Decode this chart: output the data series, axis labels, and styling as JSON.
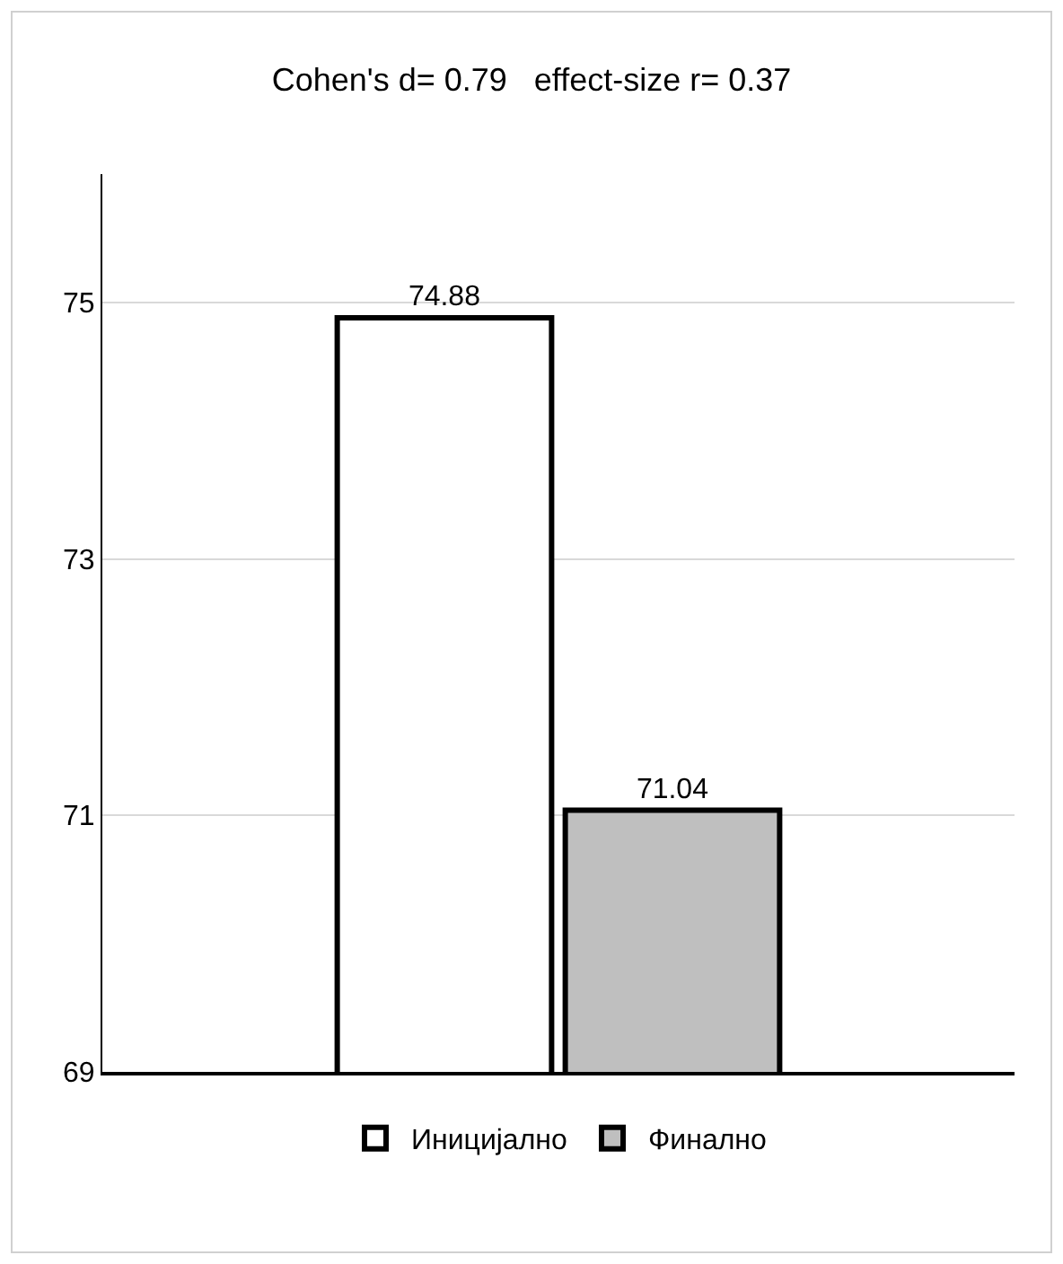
{
  "chart_data": {
    "type": "bar",
    "title": "Cohen's d= 0.79   effect-size r= 0.37",
    "categories": [
      null
    ],
    "series": [
      {
        "name": "Иницијално",
        "color": "#ffffff",
        "values": [
          74.88
        ]
      },
      {
        "name": "Финално",
        "color": "#bfbfbf",
        "values": [
          71.04
        ]
      }
    ],
    "ylim": [
      69,
      76
    ],
    "yticks": [
      69,
      71,
      73,
      75
    ],
    "grid": "y",
    "legend": "bottom",
    "data_labels": true
  }
}
